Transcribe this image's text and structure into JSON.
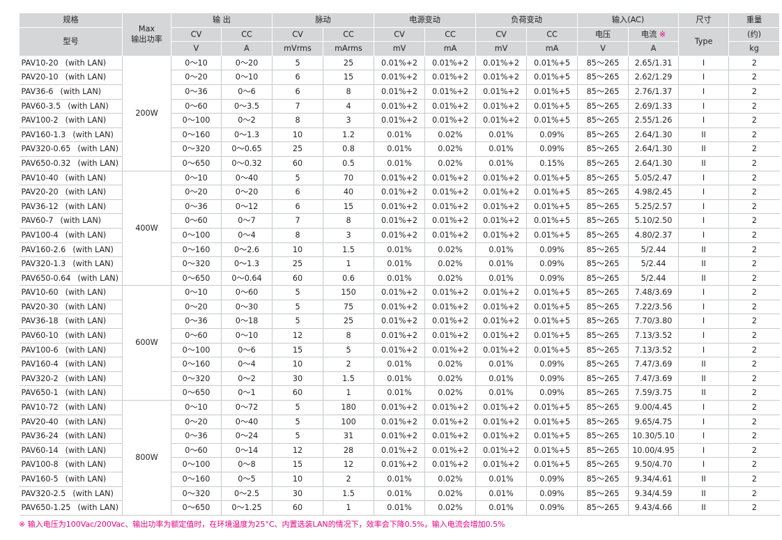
{
  "headers": {
    "spec": "规格",
    "model": "型号",
    "max_power": "Max\n输出功率",
    "output": "输 出",
    "ripple": "脉动",
    "line_reg": "电源变动",
    "load_reg": "负荷变动",
    "input": "输入(AC)",
    "size": "尺寸",
    "size_sub": "Type",
    "weight": "重量",
    "weight_sub": "(约)",
    "cv": "CV",
    "cc": "CC",
    "voltage": "电压",
    "current": "电流",
    "current_mark": "※",
    "units": [
      "V",
      "A",
      "mVrms",
      "mArms",
      "mV",
      "mA",
      "mV",
      "mA",
      "V",
      "A",
      "kg"
    ]
  },
  "groups": [
    {
      "power": "200W",
      "rows": [
        [
          "PAV10-20",
          "(with LAN)",
          "0～10",
          "0～20",
          "5",
          "25",
          "0.01%+2",
          "0.01%+2",
          "0.01%+2",
          "0.01%+5",
          "85～265",
          "2.65/1.31",
          "I",
          "2"
        ],
        [
          "PAV20-10",
          "(with LAN)",
          "0～20",
          "0～10",
          "6",
          "15",
          "0.01%+2",
          "0.01%+2",
          "0.01%+2",
          "0.01%+5",
          "85～265",
          "2.62/1.29",
          "I",
          "2"
        ],
        [
          "PAV36-6",
          "(with LAN)",
          "0～36",
          "0～6",
          "6",
          "8",
          "0.01%+2",
          "0.01%+2",
          "0.01%+2",
          "0.01%+5",
          "85～265",
          "2.76/1.37",
          "I",
          "2"
        ],
        [
          "PAV60-3.5",
          "(with LAN)",
          "0～60",
          "0～3.5",
          "7",
          "4",
          "0.01%+2",
          "0.01%+2",
          "0.01%+2",
          "0.01%+5",
          "85～265",
          "2.69/1.33",
          "I",
          "2"
        ],
        [
          "PAV100-2",
          "(with LAN)",
          "0～100",
          "0～2",
          "8",
          "3",
          "0.01%+2",
          "0.01%+2",
          "0.01%+2",
          "0.01%+5",
          "85～265",
          "2.55/1.26",
          "I",
          "2"
        ],
        [
          "PAV160-1.3",
          "(with LAN)",
          "0～160",
          "0～1.3",
          "10",
          "1.2",
          "0.01%",
          "0.02%",
          "0.01%",
          "0.09%",
          "85～265",
          "2.64/1.30",
          "II",
          "2"
        ],
        [
          "PAV320-0.65",
          "(with LAN)",
          "0～320",
          "0～0.65",
          "25",
          "0.8",
          "0.01%",
          "0.02%",
          "0.01%",
          "0.09%",
          "85～265",
          "2.64/1.30",
          "II",
          "2"
        ],
        [
          "PAV650-0.32",
          "(with LAN)",
          "0～650",
          "0～0.32",
          "60",
          "0.5",
          "0.01%",
          "0.02%",
          "0.01%",
          "0.15%",
          "85～265",
          "2.64/1.30",
          "II",
          "2"
        ]
      ]
    },
    {
      "power": "400W",
      "rows": [
        [
          "PAV10-40",
          "(with LAN)",
          "0～10",
          "0～40",
          "5",
          "70",
          "0.01%+2",
          "0.01%+2",
          "0.01%+2",
          "0.01%+5",
          "85～265",
          "5.05/2.47",
          "I",
          "2"
        ],
        [
          "PAV20-20",
          "(with LAN)",
          "0～20",
          "0～20",
          "6",
          "40",
          "0.01%+2",
          "0.01%+2",
          "0.01%+2",
          "0.01%+5",
          "85～265",
          "4.98/2.45",
          "I",
          "2"
        ],
        [
          "PAV36-12",
          "(with LAN)",
          "0～36",
          "0～12",
          "6",
          "15",
          "0.01%+2",
          "0.01%+2",
          "0.01%+2",
          "0.01%+5",
          "85～265",
          "5.25/2.57",
          "I",
          "2"
        ],
        [
          "PAV60-7",
          "(with LAN)",
          "0～60",
          "0～7",
          "7",
          "8",
          "0.01%+2",
          "0.01%+2",
          "0.01%+2",
          "0.01%+5",
          "85～265",
          "5.10/2.50",
          "I",
          "2"
        ],
        [
          "PAV100-4",
          "(with LAN)",
          "0～100",
          "0～4",
          "8",
          "3",
          "0.01%+2",
          "0.01%+2",
          "0.01%+2",
          "0.01%+5",
          "85～265",
          "4.80/2.37",
          "I",
          "2"
        ],
        [
          "PAV160-2.6",
          "(with LAN)",
          "0～160",
          "0～2.6",
          "10",
          "1.5",
          "0.01%",
          "0.02%",
          "0.01%",
          "0.09%",
          "85～265",
          "5/2.44",
          "II",
          "2"
        ],
        [
          "PAV320-1.3",
          "(with LAN)",
          "0～320",
          "0～1.3",
          "25",
          "1",
          "0.01%",
          "0.02%",
          "0.01%",
          "0.09%",
          "85～265",
          "5/2.44",
          "II",
          "2"
        ],
        [
          "PAV650-0.64",
          "(with LAN)",
          "0～650",
          "0～0.64",
          "60",
          "0.6",
          "0.01%",
          "0.02%",
          "0.01%",
          "0.09%",
          "85～265",
          "5/2.44",
          "II",
          "2"
        ]
      ]
    },
    {
      "power": "600W",
      "rows": [
        [
          "PAV10-60",
          "(with LAN)",
          "0～10",
          "0～60",
          "5",
          "150",
          "0.01%+2",
          "0.01%+2",
          "0.01%+2",
          "0.01%+5",
          "85～265",
          "7.48/3.69",
          "I",
          "2"
        ],
        [
          "PAV20-30",
          "(with LAN)",
          "0～20",
          "0～30",
          "5",
          "75",
          "0.01%+2",
          "0.01%+2",
          "0.01%+2",
          "0.01%+5",
          "85～265",
          "7.22/3.56",
          "I",
          "2"
        ],
        [
          "PAV36-18",
          "(with LAN)",
          "0～36",
          "0～18",
          "5",
          "25",
          "0.01%+2",
          "0.01%+2",
          "0.01%+2",
          "0.01%+5",
          "85～265",
          "7.70/3.80",
          "I",
          "2"
        ],
        [
          "PAV60-10",
          "(with LAN)",
          "0～60",
          "0～10",
          "12",
          "8",
          "0.01%+2",
          "0.01%+2",
          "0.01%+2",
          "0.01%+5",
          "85～265",
          "7.13/3.52",
          "I",
          "2"
        ],
        [
          "PAV100-6",
          "(with LAN)",
          "0～100",
          "0～6",
          "15",
          "5",
          "0.01%+2",
          "0.01%+2",
          "0.01%+2",
          "0.01%+5",
          "85～265",
          "7.13/3.52",
          "I",
          "2"
        ],
        [
          "PAV160-4",
          "(with LAN)",
          "0～160",
          "0～4",
          "10",
          "2",
          "0.01%",
          "0.02%",
          "0.01%",
          "0.09%",
          "85～265",
          "7.47/3.69",
          "II",
          "2"
        ],
        [
          "PAV320-2",
          "(with LAN)",
          "0～320",
          "0～2",
          "30",
          "1.5",
          "0.01%",
          "0.02%",
          "0.01%",
          "0.09%",
          "85～265",
          "7.47/3.69",
          "II",
          "2"
        ],
        [
          "PAV650-1",
          "(with LAN)",
          "0～650",
          "0～1",
          "60",
          "1",
          "0.01%",
          "0.02%",
          "0.01%",
          "0.09%",
          "85～265",
          "7.59/3.75",
          "II",
          "2"
        ]
      ]
    },
    {
      "power": "800W",
      "rows": [
        [
          "PAV10-72",
          "(with LAN)",
          "0～10",
          "0～72",
          "5",
          "180",
          "0.01%+2",
          "0.01%+2",
          "0.01%+2",
          "0.01%+5",
          "85～265",
          "9.00/4.45",
          "I",
          "2"
        ],
        [
          "PAV20-40",
          "(with LAN)",
          "0～20",
          "0～40",
          "5",
          "100",
          "0.01%+2",
          "0.01%+2",
          "0.01%+2",
          "0.01%+5",
          "85～265",
          "9.65/4.75",
          "I",
          "2"
        ],
        [
          "PAV36-24",
          "(with LAN)",
          "0～36",
          "0～24",
          "5",
          "31",
          "0.01%+2",
          "0.01%+2",
          "0.01%+2",
          "0.01%+5",
          "85～265",
          "10.30/5.10",
          "I",
          "2"
        ],
        [
          "PAV60-14",
          "(with LAN)",
          "0～60",
          "0～14",
          "12",
          "28",
          "0.01%+2",
          "0.01%+2",
          "0.01%+2",
          "0.01%+5",
          "85～265",
          "10.00/4.95",
          "I",
          "2"
        ],
        [
          "PAV100-8",
          "(with LAN)",
          "0～100",
          "0～8",
          "15",
          "12",
          "0.01%+2",
          "0.01%+2",
          "0.01%+2",
          "0.01%+5",
          "85～265",
          "9.50/4.70",
          "I",
          "2"
        ],
        [
          "PAV160-5",
          "(with LAN)",
          "0～160",
          "0～5",
          "10",
          "2",
          "0.01%",
          "0.02%",
          "0.01%",
          "0.09%",
          "85～265",
          "9.34/4.61",
          "II",
          "2"
        ],
        [
          "PAV320-2.5",
          "(with LAN)",
          "0～320",
          "0～2.5",
          "30",
          "1.5",
          "0.01%",
          "0.02%",
          "0.01%",
          "0.09%",
          "85～265",
          "9.34/4.59",
          "II",
          "2"
        ],
        [
          "PAV650-1.25",
          "(with LAN)",
          "0～650",
          "0～1.25",
          "60",
          "1",
          "0.01%",
          "0.02%",
          "0.01%",
          "0.09%",
          "85～265",
          "9.43/4.66",
          "II",
          "2"
        ]
      ]
    }
  ],
  "footnote": "※ 输入电压为100Vac/200Vac、输出功率为额定值时，在环境温度为25°C、内置选装LAN的情况下，效率会下降0.5%，输入电流会增加0.5%",
  "colors": {
    "header_bg": "#d4d6d8",
    "grid": "#c6c8ca",
    "note": "#e6007e"
  }
}
